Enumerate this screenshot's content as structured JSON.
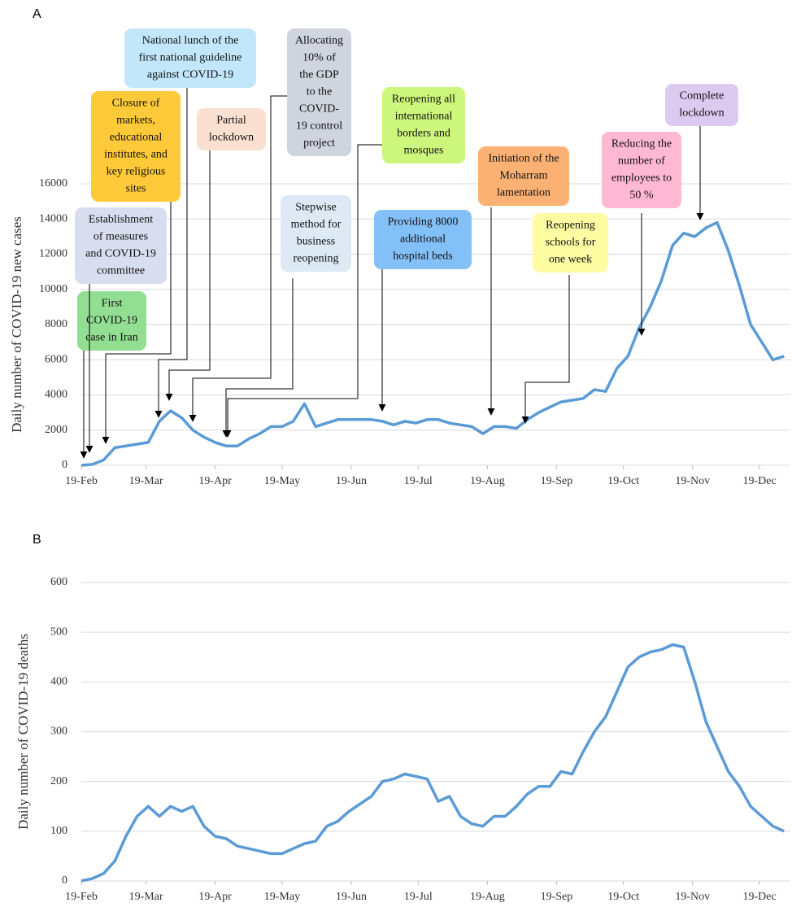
{
  "chart_data": [
    {
      "type": "line",
      "panel_label": "A",
      "y_label": "Daily number of COVID-19 new cases",
      "color": "#5b9bd5",
      "grid": true,
      "x": [
        "19-Feb",
        "24-Feb",
        "29-Feb",
        "5-Mar",
        "10-Mar",
        "15-Mar",
        "20-Mar",
        "25-Mar",
        "30-Mar",
        "4-Apr",
        "9-Apr",
        "14-Apr",
        "19-Apr",
        "24-Apr",
        "29-Apr",
        "4-May",
        "9-May",
        "14-May",
        "19-May",
        "24-May",
        "29-May",
        "3-Jun",
        "8-Jun",
        "13-Jun",
        "18-Jun",
        "23-Jun",
        "28-Jun",
        "3-Jul",
        "8-Jul",
        "13-Jul",
        "18-Jul",
        "23-Jul",
        "28-Jul",
        "2-Aug",
        "7-Aug",
        "12-Aug",
        "17-Aug",
        "22-Aug",
        "27-Aug",
        "1-Sep",
        "6-Sep",
        "11-Sep",
        "16-Sep",
        "21-Sep",
        "26-Sep",
        "1-Oct",
        "6-Oct",
        "11-Oct",
        "16-Oct",
        "21-Oct",
        "26-Oct",
        "31-Oct",
        "5-Nov",
        "10-Nov",
        "15-Nov",
        "20-Nov",
        "25-Nov",
        "30-Nov",
        "5-Dec",
        "10-Dec",
        "15-Dec",
        "20-Dec",
        "25-Dec",
        "30-Dec"
      ],
      "values": [
        0,
        50,
        300,
        1000,
        1100,
        1200,
        1300,
        2500,
        3100,
        2700,
        2000,
        1600,
        1300,
        1100,
        1100,
        1500,
        1800,
        2200,
        2200,
        2500,
        3500,
        2200,
        2400,
        2600,
        2600,
        2600,
        2600,
        2500,
        2300,
        2500,
        2400,
        2600,
        2600,
        2400,
        2300,
        2200,
        1800,
        2200,
        2200,
        2100,
        2600,
        3000,
        3300,
        3600,
        3700,
        3800,
        4300,
        4200,
        5500,
        6200,
        7800,
        9000,
        10500,
        12500,
        13200,
        13000,
        13500,
        13800,
        12200,
        10200,
        8000,
        7000,
        6000,
        6200
      ],
      "xlim": [
        "19-Feb",
        "31-Dec"
      ],
      "xticks": [
        "19-Feb",
        "19-Mar",
        "19-Apr",
        "19-May",
        "19-Jun",
        "19-Jul",
        "19-Aug",
        "19-Sep",
        "19-Oct",
        "19-Nov",
        "19-Dec"
      ],
      "ylim": [
        0,
        16000
      ],
      "yticks": [
        0,
        2000,
        4000,
        6000,
        8000,
        10000,
        12000,
        14000,
        16000
      ],
      "annotations": [
        {
          "lines": [
            "First",
            "COVID-19",
            "case in Iran"
          ],
          "color": "#92de92"
        },
        {
          "lines": [
            "Establishment",
            "of measures",
            "and COVID-19",
            "committee"
          ],
          "color": "#d8deef"
        },
        {
          "lines": [
            "Closure of",
            "markets,",
            "educational",
            "institutes, and",
            "key religious",
            "sites"
          ],
          "color": "#ffca3a"
        },
        {
          "lines": [
            "National lunch of the",
            "first national guideline",
            "against COVID-19"
          ],
          "color": "#c2e7fa"
        },
        {
          "lines": [
            "Partial",
            "lockdown"
          ],
          "color": "#f9e0d0"
        },
        {
          "lines": [
            "Allocating",
            "10% of",
            "the GDP",
            "to the",
            "COVID-",
            "19 control",
            "project"
          ],
          "color": "#d0d4df"
        },
        {
          "lines": [
            "Stepwise",
            "method for",
            "business",
            "reopening"
          ],
          "color": "#dde9f5"
        },
        {
          "lines": [
            "Reopening all",
            "international",
            "borders and",
            "mosques"
          ],
          "color": "#cdf67c"
        },
        {
          "lines": [
            "Providing 8000",
            "additional",
            "hospital beds"
          ],
          "color": "#84c0f8"
        },
        {
          "lines": [
            "Initiation of the",
            "Moharram",
            "lamentation"
          ],
          "color": "#fbb173"
        },
        {
          "lines": [
            "Reopening",
            "schools for",
            "one week"
          ],
          "color": "#fdfca2"
        },
        {
          "lines": [
            "Reducing the",
            "number of",
            "employees to",
            "50 %"
          ],
          "color": "#ffb8d2"
        },
        {
          "lines": [
            "Complete",
            "lockdown"
          ],
          "color": "#dccaf0"
        }
      ]
    },
    {
      "type": "line",
      "panel_label": "B",
      "y_label": "Daily number of COVID-19 deaths",
      "color": "#5b9bd5",
      "grid": true,
      "x": [
        "19-Feb",
        "24-Feb",
        "29-Feb",
        "5-Mar",
        "10-Mar",
        "15-Mar",
        "20-Mar",
        "25-Mar",
        "30-Mar",
        "4-Apr",
        "9-Apr",
        "14-Apr",
        "19-Apr",
        "24-Apr",
        "29-Apr",
        "4-May",
        "9-May",
        "14-May",
        "19-May",
        "24-May",
        "29-May",
        "3-Jun",
        "8-Jun",
        "13-Jun",
        "18-Jun",
        "23-Jun",
        "28-Jun",
        "3-Jul",
        "8-Jul",
        "13-Jul",
        "18-Jul",
        "23-Jul",
        "28-Jul",
        "2-Aug",
        "7-Aug",
        "12-Aug",
        "17-Aug",
        "22-Aug",
        "27-Aug",
        "1-Sep",
        "6-Sep",
        "11-Sep",
        "16-Sep",
        "21-Sep",
        "26-Sep",
        "1-Oct",
        "6-Oct",
        "11-Oct",
        "16-Oct",
        "21-Oct",
        "26-Oct",
        "31-Oct",
        "5-Nov",
        "10-Nov",
        "15-Nov",
        "20-Nov",
        "25-Nov",
        "30-Nov",
        "5-Dec",
        "10-Dec",
        "15-Dec",
        "20-Dec",
        "25-Dec",
        "30-Dec"
      ],
      "values": [
        0,
        5,
        15,
        40,
        90,
        130,
        150,
        130,
        150,
        140,
        150,
        110,
        90,
        85,
        70,
        65,
        60,
        55,
        55,
        65,
        75,
        80,
        110,
        120,
        140,
        155,
        170,
        200,
        205,
        215,
        210,
        205,
        160,
        170,
        130,
        115,
        110,
        130,
        130,
        150,
        175,
        190,
        190,
        220,
        215,
        260,
        300,
        330,
        380,
        430,
        450,
        460,
        465,
        475,
        470,
        400,
        320,
        270,
        220,
        190,
        150,
        130,
        110,
        100
      ],
      "xlim": [
        "19-Feb",
        "31-Dec"
      ],
      "xticks": [
        "19-Feb",
        "19-Mar",
        "19-Apr",
        "19-May",
        "19-Jun",
        "19-Jul",
        "19-Aug",
        "19-Sep",
        "19-Oct",
        "19-Nov",
        "19-Dec"
      ],
      "ylim": [
        0,
        600
      ],
      "yticks": [
        0,
        100,
        200,
        300,
        400,
        500,
        600
      ]
    }
  ]
}
